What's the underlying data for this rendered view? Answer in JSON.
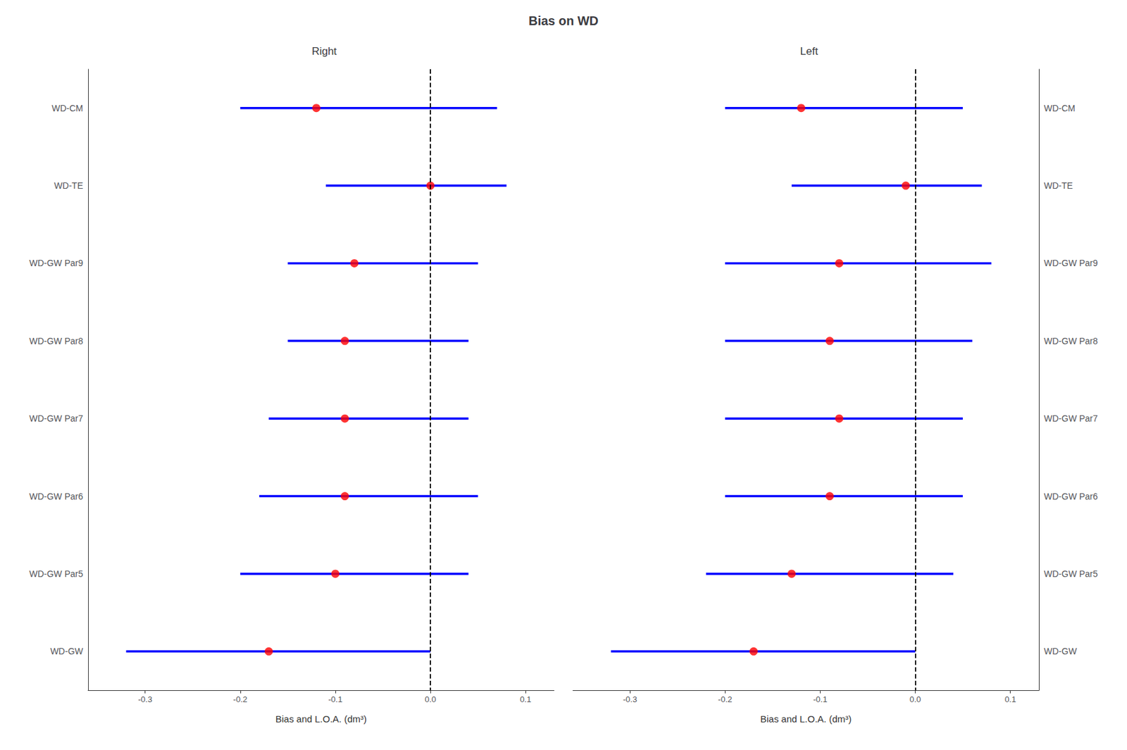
{
  "chart_data": [
    {
      "type": "forest",
      "title": "Bias on WD",
      "subtitle": "Right",
      "categories": [
        "WD-CM",
        "WD-TE",
        "WD-GW Par9",
        "WD-GW Par8",
        "WD-GW Par7",
        "WD-GW Par6",
        "WD-GW Par5",
        "WD-GW"
      ],
      "series": [
        {
          "type": "range",
          "color": "blue",
          "low": [
            -0.2,
            -0.11,
            -0.15,
            -0.15,
            -0.17,
            -0.18,
            -0.2,
            -0.32
          ],
          "high": [
            0.07,
            0.08,
            0.05,
            0.04,
            0.04,
            0.05,
            0.04,
            0.0
          ]
        },
        {
          "type": "scatter",
          "color": "red",
          "values": [
            -0.12,
            0.0,
            -0.08,
            -0.09,
            -0.09,
            -0.09,
            -0.1,
            -0.17
          ]
        }
      ],
      "vline": 0,
      "line_style": "dashed",
      "xlabel": "Bias and L.O.A. (dm³)",
      "xlim": [
        -0.36,
        0.13
      ],
      "xticks": [
        -0.3,
        -0.2,
        -0.1,
        {
          "value": 0,
          "label": "0.0"
        },
        0.1
      ],
      "grid": false
    },
    {
      "type": "forest",
      "subtitle": "Left",
      "categories": [
        "WD-CM",
        "WD-TE",
        "WD-GW Par9",
        "WD-GW Par8",
        "WD-GW Par7",
        "WD-GW Par6",
        "WD-GW Par5",
        "WD-GW"
      ],
      "series": [
        {
          "type": "range",
          "color": "blue",
          "low": [
            -0.2,
            -0.13,
            -0.2,
            -0.2,
            -0.2,
            -0.2,
            -0.22,
            -0.32
          ],
          "high": [
            0.05,
            0.07,
            0.08,
            0.06,
            0.05,
            0.05,
            0.04,
            0.0
          ]
        },
        {
          "type": "scatter",
          "color": "red",
          "values": [
            -0.12,
            -0.01,
            -0.08,
            -0.09,
            -0.08,
            -0.09,
            -0.13,
            -0.17
          ]
        }
      ],
      "vline": 0,
      "line_style": "dashed",
      "xlabel": "Bias and L.O.A. (dm³)",
      "xlim": [
        -0.36,
        0.13
      ],
      "xticks": [
        -0.3,
        -0.2,
        -0.1,
        {
          "value": 0,
          "label": "0.0"
        },
        0.1
      ],
      "grid": false
    }
  ]
}
